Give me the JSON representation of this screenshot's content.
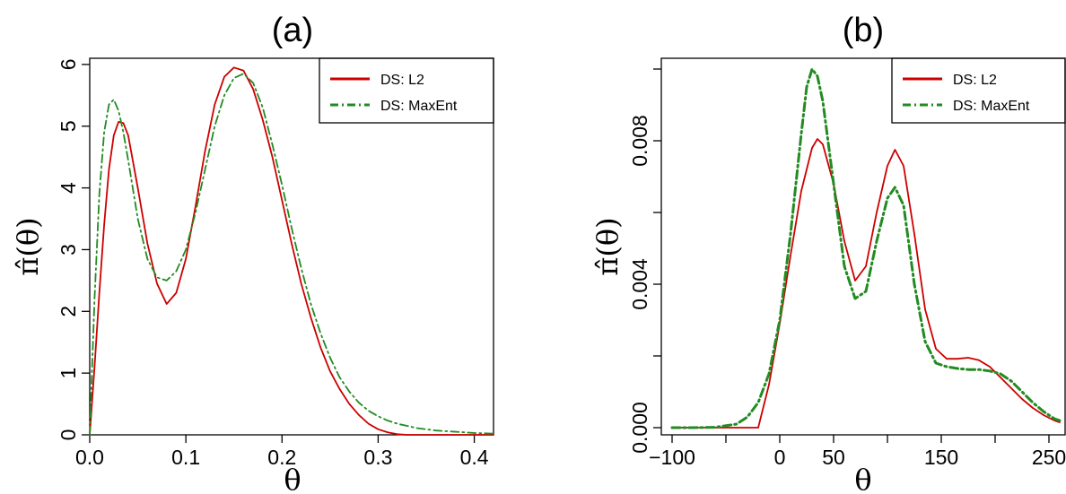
{
  "chart_data": [
    {
      "type": "line",
      "title": "(a)",
      "xlabel": "θ",
      "ylabel": "π̂(θ)",
      "xlim": [
        0,
        0.42
      ],
      "ylim": [
        0,
        6.1
      ],
      "xticks": [
        0.0,
        0.1,
        0.2,
        0.3,
        0.4
      ],
      "xtick_labels": [
        "0.0",
        "0.1",
        "0.2",
        "0.3",
        "0.4"
      ],
      "yticks": [
        0,
        1,
        2,
        3,
        4,
        5,
        6
      ],
      "ytick_labels": [
        "0",
        "1",
        "2",
        "3",
        "4",
        "5",
        "6"
      ],
      "legend": {
        "position": "top-right",
        "entries": [
          {
            "label": "DS: L2",
            "color": "#cc0000",
            "style": "solid"
          },
          {
            "label": "DS: MaxEnt",
            "color": "#228b22",
            "style": "dashdot"
          }
        ]
      },
      "series": [
        {
          "label_ref": 0,
          "color": "#cc0000",
          "style": "solid",
          "x": [
            0.0,
            0.005,
            0.01,
            0.015,
            0.02,
            0.025,
            0.03,
            0.035,
            0.04,
            0.05,
            0.06,
            0.07,
            0.08,
            0.09,
            0.1,
            0.11,
            0.12,
            0.13,
            0.14,
            0.15,
            0.16,
            0.17,
            0.18,
            0.19,
            0.2,
            0.21,
            0.22,
            0.23,
            0.24,
            0.25,
            0.26,
            0.27,
            0.28,
            0.29,
            0.3,
            0.31,
            0.32,
            0.33,
            0.34,
            0.35,
            0.38,
            0.42
          ],
          "y": [
            0.0,
            1.1,
            2.3,
            3.4,
            4.3,
            4.85,
            5.07,
            5.05,
            4.85,
            4.0,
            3.1,
            2.45,
            2.12,
            2.3,
            2.85,
            3.7,
            4.6,
            5.35,
            5.8,
            5.95,
            5.9,
            5.6,
            5.1,
            4.5,
            3.8,
            3.1,
            2.45,
            1.9,
            1.42,
            1.03,
            0.74,
            0.5,
            0.32,
            0.18,
            0.09,
            0.04,
            0.01,
            0.0,
            0.0,
            0.0,
            0.0,
            0.0
          ]
        },
        {
          "label_ref": 1,
          "color": "#228b22",
          "style": "dashdot",
          "x": [
            0.0,
            0.005,
            0.01,
            0.015,
            0.02,
            0.025,
            0.03,
            0.035,
            0.04,
            0.05,
            0.06,
            0.07,
            0.08,
            0.09,
            0.1,
            0.11,
            0.12,
            0.13,
            0.14,
            0.15,
            0.16,
            0.17,
            0.18,
            0.19,
            0.2,
            0.21,
            0.22,
            0.23,
            0.24,
            0.25,
            0.26,
            0.27,
            0.28,
            0.29,
            0.3,
            0.31,
            0.32,
            0.34,
            0.36,
            0.38,
            0.4,
            0.42
          ],
          "y": [
            0.0,
            2.2,
            3.9,
            4.9,
            5.35,
            5.43,
            5.25,
            4.9,
            4.45,
            3.5,
            2.85,
            2.55,
            2.5,
            2.65,
            3.0,
            3.6,
            4.3,
            5.0,
            5.5,
            5.78,
            5.85,
            5.7,
            5.3,
            4.7,
            4.05,
            3.35,
            2.7,
            2.12,
            1.65,
            1.25,
            0.93,
            0.7,
            0.52,
            0.39,
            0.3,
            0.23,
            0.18,
            0.11,
            0.07,
            0.05,
            0.03,
            0.02
          ]
        }
      ]
    },
    {
      "type": "line",
      "title": "(b)",
      "xlabel": "θ",
      "ylabel": "π̂(θ)",
      "xlim": [
        -110,
        265
      ],
      "ylim": [
        -0.0002,
        0.0103
      ],
      "xticks": [
        -100,
        -50,
        0,
        50,
        100,
        150,
        200,
        250
      ],
      "xtick_labels": [
        "−100",
        "",
        "0",
        "50",
        "",
        "150",
        "",
        "250"
      ],
      "yticks": [
        0.0,
        0.002,
        0.004,
        0.006,
        0.008,
        0.01
      ],
      "ytick_labels": [
        "0.000",
        "",
        "0.004",
        "",
        "0.008",
        ""
      ],
      "legend": {
        "position": "top-right",
        "entries": [
          {
            "label": "DS: L2",
            "color": "#cc0000",
            "style": "solid"
          },
          {
            "label": "DS: MaxEnt",
            "color": "#228b22",
            "style": "dashdot"
          }
        ]
      },
      "series": [
        {
          "label_ref": 0,
          "color": "#cc0000",
          "style": "solid",
          "x": [
            -100,
            -80,
            -60,
            -40,
            -30,
            -20,
            -10,
            0,
            10,
            20,
            30,
            35,
            40,
            50,
            60,
            70,
            80,
            90,
            100,
            107,
            115,
            125,
            135,
            145,
            155,
            165,
            175,
            185,
            195,
            205,
            215,
            225,
            235,
            245,
            255,
            260
          ],
          "y": [
            0.0,
            0.0,
            0.0,
            0.0,
            0.0,
            0.0,
            0.0012,
            0.0029,
            0.0048,
            0.0066,
            0.0078,
            0.00805,
            0.0079,
            0.0068,
            0.0052,
            0.0041,
            0.0045,
            0.006,
            0.0073,
            0.00775,
            0.0073,
            0.0054,
            0.0033,
            0.0022,
            0.00192,
            0.00192,
            0.00195,
            0.00188,
            0.0017,
            0.0014,
            0.0011,
            0.0008,
            0.00055,
            0.00035,
            0.0002,
            0.00015
          ]
        },
        {
          "label_ref": 1,
          "color": "#228b22",
          "style": "dashdot",
          "x": [
            -100,
            -80,
            -60,
            -40,
            -30,
            -20,
            -10,
            0,
            10,
            20,
            25,
            30,
            35,
            40,
            50,
            60,
            70,
            80,
            90,
            100,
            107,
            115,
            125,
            135,
            145,
            155,
            165,
            175,
            185,
            195,
            205,
            215,
            225,
            235,
            245,
            255,
            260
          ],
          "y": [
            0.0,
            0.0,
            1e-05,
            0.0001,
            0.0003,
            0.0007,
            0.0015,
            0.003,
            0.0054,
            0.0082,
            0.0095,
            0.01,
            0.0098,
            0.0091,
            0.0068,
            0.0045,
            0.0036,
            0.0038,
            0.0052,
            0.0064,
            0.0067,
            0.0062,
            0.004,
            0.0024,
            0.0018,
            0.0017,
            0.00165,
            0.00162,
            0.00162,
            0.00158,
            0.0015,
            0.0013,
            0.001,
            0.0007,
            0.00045,
            0.00025,
            0.0002
          ]
        }
      ]
    }
  ]
}
